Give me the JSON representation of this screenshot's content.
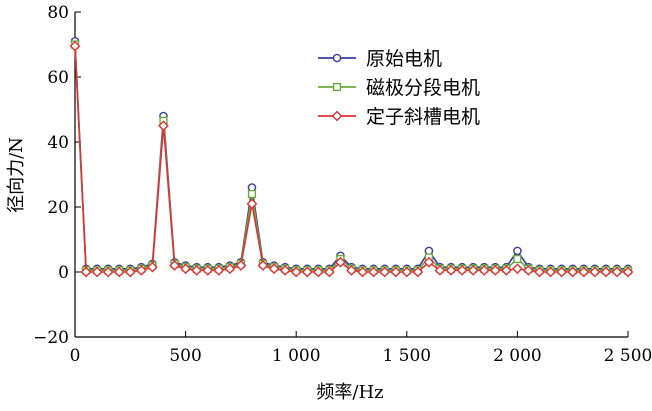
{
  "chart_data": {
    "type": "line",
    "xlabel": "频率/Hz",
    "ylabel": "径向力/N",
    "xlim": [
      0,
      2500
    ],
    "ylim": [
      -20,
      80
    ],
    "x_ticks": [
      0,
      500,
      1000,
      1500,
      2000,
      2500
    ],
    "x_tick_labels": [
      "0",
      "500",
      "1 000",
      "1 500",
      "2 000",
      "2 500"
    ],
    "y_ticks": [
      -20,
      0,
      20,
      40,
      60,
      80
    ],
    "y_tick_labels": [
      "−20",
      "0",
      "20",
      "40",
      "60",
      "80"
    ],
    "grid": false,
    "legend_position": "top-right",
    "x": [
      0,
      50,
      100,
      150,
      200,
      250,
      300,
      350,
      400,
      450,
      500,
      550,
      600,
      650,
      700,
      750,
      800,
      850,
      900,
      950,
      1000,
      1050,
      1100,
      1150,
      1200,
      1250,
      1300,
      1350,
      1400,
      1450,
      1500,
      1550,
      1600,
      1650,
      1700,
      1750,
      1800,
      1850,
      1900,
      1950,
      2000,
      2050,
      2100,
      2150,
      2200,
      2250,
      2300,
      2350,
      2400,
      2450,
      2500
    ],
    "series": [
      {
        "name": "原始电机",
        "color": "#3a3a9a",
        "marker": "circle",
        "values": [
          71,
          1,
          1,
          1,
          1,
          1,
          1.5,
          2.5,
          48,
          3,
          2,
          1.5,
          1.5,
          1.5,
          2,
          3,
          26,
          3,
          2,
          1.5,
          1,
          1,
          1,
          1,
          5,
          1.5,
          1,
          1,
          1,
          1,
          1,
          1,
          6.5,
          1.5,
          1.5,
          1.5,
          1.5,
          1.5,
          1.5,
          1.5,
          6.5,
          1.5,
          1,
          1,
          1,
          1,
          1,
          1,
          1,
          1,
          1
        ]
      },
      {
        "name": "磁极分段电机",
        "color": "#6aaa3a",
        "marker": "square",
        "values": [
          70,
          0.5,
          0.5,
          0.5,
          0.5,
          0.5,
          1,
          2,
          46.5,
          2.5,
          1.5,
          1,
          1,
          1,
          1.5,
          2.5,
          24,
          2.5,
          1.5,
          1,
          0.5,
          0.5,
          0.5,
          0.5,
          4,
          1,
          0.5,
          0.5,
          0.5,
          0.5,
          0.5,
          0.5,
          4.5,
          1,
          1,
          1,
          1,
          1,
          1,
          1,
          4,
          1,
          0.5,
          0.5,
          0.5,
          0.5,
          0.5,
          0.5,
          0.5,
          0.5,
          0.5
        ]
      },
      {
        "name": "定子斜槽电机",
        "color": "#dd3333",
        "marker": "diamond",
        "values": [
          69.5,
          0,
          0,
          0,
          0,
          0,
          0.5,
          1.5,
          45,
          2,
          1,
          0.5,
          0.5,
          0.5,
          1,
          2,
          21,
          2,
          1,
          0.5,
          0,
          0,
          0,
          0,
          3,
          0.5,
          0,
          0,
          0,
          0,
          0,
          0,
          3,
          0.5,
          0.5,
          0.5,
          0.5,
          0.5,
          0.5,
          0.5,
          1,
          0.5,
          0,
          0,
          0,
          0,
          0,
          0,
          0,
          0,
          0
        ]
      }
    ]
  }
}
